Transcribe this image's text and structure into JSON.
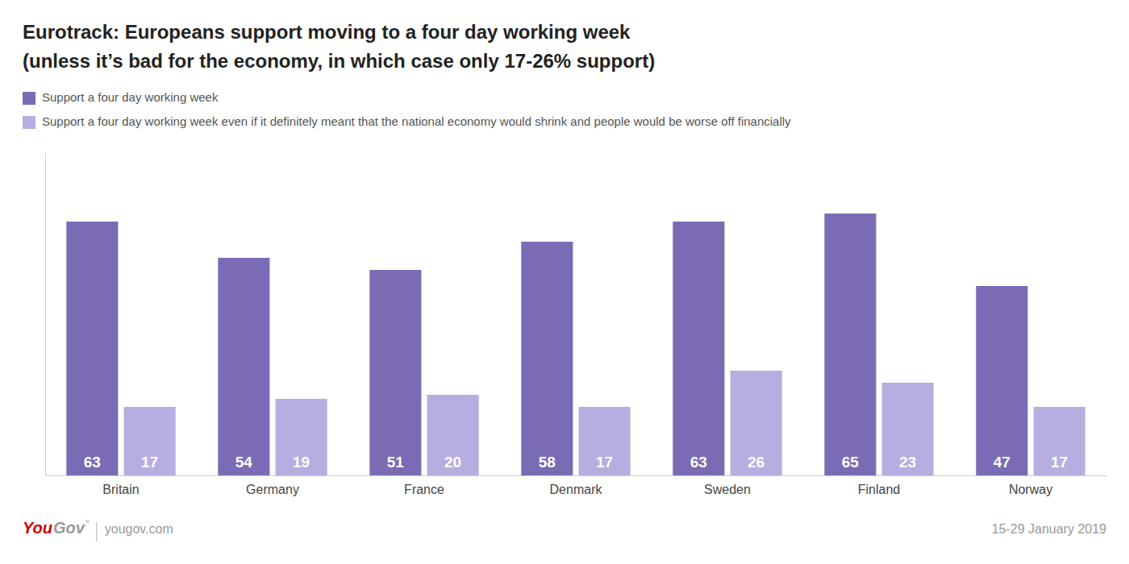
{
  "chart_data": {
    "type": "bar",
    "title": "Eurotrack: Europeans support moving to a four day working week",
    "subtitle": "(unless it’s bad for the economy, in which case only 17-26% support)",
    "categories": [
      "Britain",
      "Germany",
      "France",
      "Denmark",
      "Sweden",
      "Finland",
      "Norway"
    ],
    "series": [
      {
        "name": "Support a four day working week",
        "color": "#7B6BB5",
        "values": [
          63,
          54,
          51,
          58,
          63,
          65,
          47
        ]
      },
      {
        "name": "Support a four day working week even if it definitely meant that the national economy would shrink and people would be worse off financially",
        "color": "#B8ADE0",
        "values": [
          17,
          19,
          20,
          17,
          26,
          23,
          17
        ]
      }
    ],
    "ylim": [
      0,
      80
    ],
    "tick_labels": "x",
    "grid": false,
    "legend": "top-left",
    "data_labels": true,
    "annotations": [
      {
        "text": "You",
        "color": "#CC0000"
      },
      {
        "text": "Gov",
        "color": "#999999"
      },
      {
        "text": "°",
        "color": "#999999"
      },
      {
        "text": "yougov.com"
      },
      {
        "text": "15-29 January 2019"
      }
    ]
  }
}
